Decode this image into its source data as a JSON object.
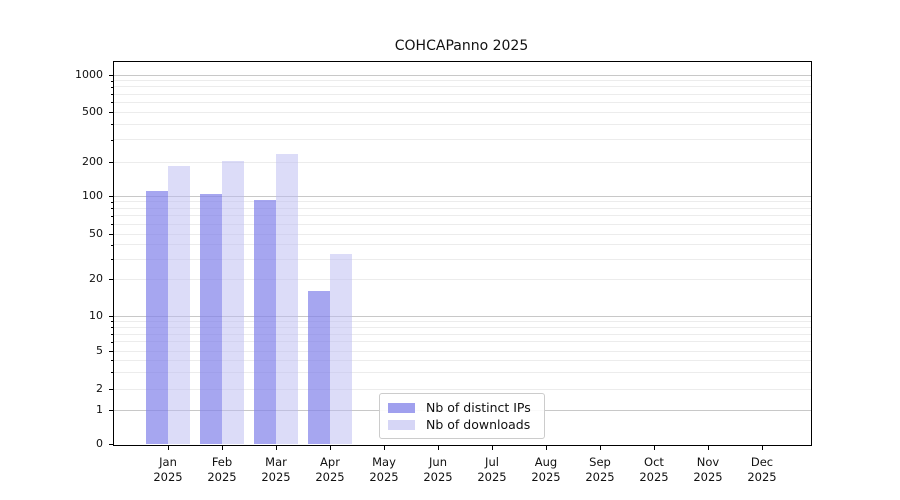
{
  "title": "COHCAPanno 2025",
  "chart_data": {
    "type": "bar",
    "title": "COHCAPanno 2025",
    "categories": [
      "Jan 2025",
      "Feb 2025",
      "Mar 2025",
      "Apr 2025",
      "May 2025",
      "Jun 2025",
      "Jul 2025",
      "Aug 2025",
      "Sep 2025",
      "Oct 2025",
      "Nov 2025",
      "Dec 2025"
    ],
    "series": [
      {
        "name": "Nb of distinct IPs",
        "color": "#a0a0ee",
        "fill": "rgba(128,128,234,0.70)",
        "values": [
          110,
          104,
          93,
          16,
          null,
          null,
          null,
          null,
          null,
          null,
          null,
          null
        ]
      },
      {
        "name": "Nb of downloads",
        "color": "#d6d6f6",
        "fill": "rgba(185,185,241,0.50)",
        "values": [
          185,
          205,
          230,
          33,
          null,
          null,
          null,
          null,
          null,
          null,
          null,
          null
        ]
      }
    ],
    "yscale": "symlog",
    "yticks": [
      0,
      1,
      2,
      5,
      10,
      20,
      50,
      100,
      200,
      500,
      1000
    ],
    "ylim": [
      0,
      1200
    ],
    "xlabel": "",
    "ylabel": "",
    "grid": "horizontal",
    "grid_major_color": "#c8c8c8",
    "grid_minor_color": "#ececec",
    "legend_position": "lower-center"
  }
}
